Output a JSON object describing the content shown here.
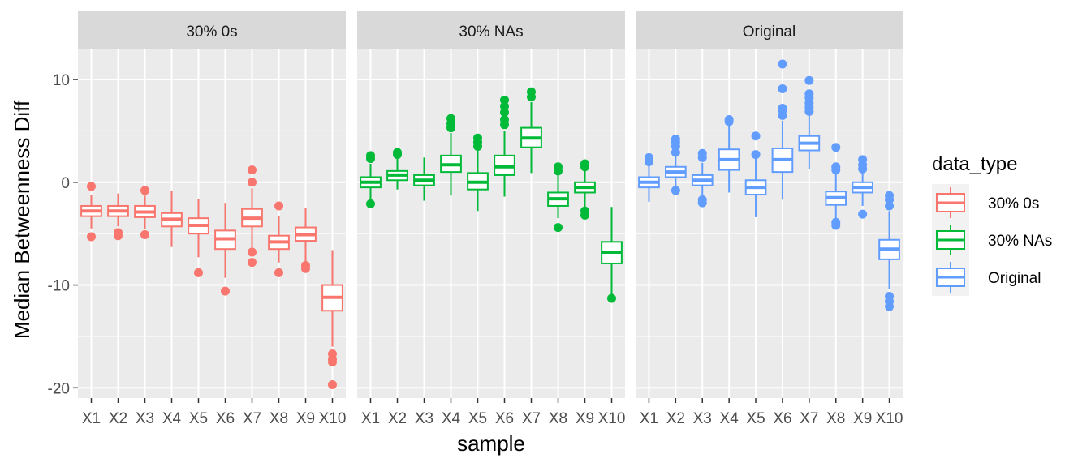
{
  "chart_data": {
    "type": "boxplot",
    "facet_by": "data_type",
    "ylabel": "Median Betweenness Diff",
    "xlabel": "sample",
    "ylim": [
      -21,
      13
    ],
    "yticks": [
      -20,
      -10,
      0,
      10
    ],
    "categories": [
      "X1",
      "X2",
      "X3",
      "X4",
      "X5",
      "X6",
      "X7",
      "X8",
      "X9",
      "X10"
    ],
    "legend": {
      "title": "data_type",
      "position": "right",
      "entries": [
        "30% 0s",
        "30% NAs",
        "Original"
      ]
    },
    "panels": [
      {
        "name": "30% 0s",
        "color": "#F8766D",
        "boxes": [
          {
            "x": "X1",
            "q1": -3.3,
            "median": -2.8,
            "q3": -2.3,
            "whisker_low": -4.5,
            "whisker_high": -1.2,
            "outliers": [
              -0.4,
              -5.3
            ]
          },
          {
            "x": "X2",
            "q1": -3.3,
            "median": -2.8,
            "q3": -2.3,
            "whisker_low": -4.3,
            "whisker_high": -1.1,
            "outliers": [
              -4.9,
              -5.2
            ]
          },
          {
            "x": "X3",
            "q1": -3.4,
            "median": -2.9,
            "q3": -2.3,
            "whisker_low": -4.6,
            "whisker_high": -1.3,
            "outliers": [
              -0.8,
              -5.1
            ]
          },
          {
            "x": "X4",
            "q1": -4.3,
            "median": -3.6,
            "q3": -3.0,
            "whisker_low": -6.3,
            "whisker_high": -0.8,
            "outliers": []
          },
          {
            "x": "X5",
            "q1": -5.0,
            "median": -4.2,
            "q3": -3.5,
            "whisker_low": -7.3,
            "whisker_high": -1.6,
            "outliers": [
              -8.8
            ]
          },
          {
            "x": "X6",
            "q1": -6.5,
            "median": -5.5,
            "q3": -4.7,
            "whisker_low": -9.3,
            "whisker_high": -2.0,
            "outliers": [
              -10.6
            ]
          },
          {
            "x": "X7",
            "q1": -4.3,
            "median": -3.5,
            "q3": -2.6,
            "whisker_low": -6.5,
            "whisker_high": -0.6,
            "outliers": [
              1.2,
              0.0,
              -6.8,
              -7.8
            ]
          },
          {
            "x": "X8",
            "q1": -6.5,
            "median": -5.8,
            "q3": -5.2,
            "whisker_low": -7.8,
            "whisker_high": -3.3,
            "outliers": [
              -2.3,
              -8.8
            ]
          },
          {
            "x": "X9",
            "q1": -5.7,
            "median": -5.1,
            "q3": -4.4,
            "whisker_low": -7.8,
            "whisker_high": -2.5,
            "outliers": [
              -8.1,
              -8.4
            ]
          },
          {
            "x": "X10",
            "q1": -12.5,
            "median": -11.2,
            "q3": -10.0,
            "whisker_low": -16.0,
            "whisker_high": -6.6,
            "outliers": [
              -16.7,
              -17.2,
              -17.5,
              -19.7
            ]
          }
        ]
      },
      {
        "name": "30% NAs",
        "color": "#00BA38",
        "boxes": [
          {
            "x": "X1",
            "q1": -0.5,
            "median": 0.0,
            "q3": 0.5,
            "whisker_low": -1.7,
            "whisker_high": 1.8,
            "outliers": [
              2.3,
              2.6,
              -2.1
            ]
          },
          {
            "x": "X2",
            "q1": 0.2,
            "median": 0.7,
            "q3": 1.1,
            "whisker_low": -0.7,
            "whisker_high": 2.3,
            "outliers": [
              2.7,
              2.9
            ]
          },
          {
            "x": "X3",
            "q1": -0.3,
            "median": 0.2,
            "q3": 0.7,
            "whisker_low": -1.8,
            "whisker_high": 2.4,
            "outliers": []
          },
          {
            "x": "X4",
            "q1": 1.0,
            "median": 1.7,
            "q3": 2.6,
            "whisker_low": -1.3,
            "whisker_high": 4.8,
            "outliers": [
              5.3,
              5.7,
              6.2
            ]
          },
          {
            "x": "X5",
            "q1": -0.7,
            "median": 0.0,
            "q3": 0.9,
            "whisker_low": -2.8,
            "whisker_high": 3.1,
            "outliers": [
              3.5,
              3.9,
              4.3
            ]
          },
          {
            "x": "X6",
            "q1": 0.7,
            "median": 1.5,
            "q3": 2.6,
            "whisker_low": -1.4,
            "whisker_high": 5.0,
            "outliers": [
              5.6,
              6.1,
              6.8,
              7.4,
              8.0
            ]
          },
          {
            "x": "X7",
            "q1": 3.4,
            "median": 4.3,
            "q3": 5.3,
            "whisker_low": 0.9,
            "whisker_high": 7.8,
            "outliers": [
              8.3,
              8.8
            ]
          },
          {
            "x": "X8",
            "q1": -2.3,
            "median": -1.6,
            "q3": -1.0,
            "whisker_low": -3.5,
            "whisker_high": 0.8,
            "outliers": [
              1.1,
              1.5,
              -4.4
            ]
          },
          {
            "x": "X9",
            "q1": -1.0,
            "median": -0.5,
            "q3": 0.0,
            "whisker_low": -2.4,
            "whisker_high": 1.2,
            "outliers": [
              1.5,
              1.8,
              -2.8,
              -3.2
            ]
          },
          {
            "x": "X10",
            "q1": -7.9,
            "median": -6.8,
            "q3": -5.8,
            "whisker_low": -11.0,
            "whisker_high": -2.4,
            "outliers": [
              -11.3
            ]
          }
        ]
      },
      {
        "name": "Original",
        "color": "#619CFF",
        "boxes": [
          {
            "x": "X1",
            "q1": -0.5,
            "median": 0.0,
            "q3": 0.5,
            "whisker_low": -1.9,
            "whisker_high": 1.7,
            "outliers": [
              2.0,
              2.4
            ]
          },
          {
            "x": "X2",
            "q1": 0.5,
            "median": 1.0,
            "q3": 1.5,
            "whisker_low": -0.7,
            "whisker_high": 2.6,
            "outliers": [
              2.9,
              3.5,
              3.9,
              4.2,
              -0.8
            ]
          },
          {
            "x": "X3",
            "q1": -0.3,
            "median": 0.2,
            "q3": 0.7,
            "whisker_low": -1.4,
            "whisker_high": 1.9,
            "outliers": [
              2.4,
              2.8,
              -1.7,
              -2.0
            ]
          },
          {
            "x": "X4",
            "q1": 1.2,
            "median": 2.2,
            "q3": 3.2,
            "whisker_low": -1.0,
            "whisker_high": 5.5,
            "outliers": [
              5.9,
              6.1
            ]
          },
          {
            "x": "X5",
            "q1": -1.2,
            "median": -0.5,
            "q3": 0.2,
            "whisker_low": -3.4,
            "whisker_high": 2.4,
            "outliers": [
              2.7,
              4.5
            ]
          },
          {
            "x": "X6",
            "q1": 1.0,
            "median": 2.2,
            "q3": 3.3,
            "whisker_low": -1.7,
            "whisker_high": 6.0,
            "outliers": [
              6.5,
              7.0,
              7.2,
              9.1,
              11.5
            ]
          },
          {
            "x": "X7",
            "q1": 3.1,
            "median": 3.8,
            "q3": 4.5,
            "whisker_low": 1.3,
            "whisker_high": 6.5,
            "outliers": [
              6.9,
              7.3,
              7.7,
              8.2,
              8.6,
              9.9
            ]
          },
          {
            "x": "X8",
            "q1": -2.2,
            "median": -1.5,
            "q3": -0.9,
            "whisker_low": -3.6,
            "whisker_high": 0.9,
            "outliers": [
              1.2,
              1.5,
              3.4,
              -3.9,
              -4.2
            ]
          },
          {
            "x": "X9",
            "q1": -1.0,
            "median": -0.5,
            "q3": 0.0,
            "whisker_low": -2.3,
            "whisker_high": 1.0,
            "outliers": [
              1.3,
              1.7,
              2.2,
              -3.1
            ]
          },
          {
            "x": "X10",
            "q1": -7.5,
            "median": -6.5,
            "q3": -5.6,
            "whisker_low": -10.4,
            "whisker_high": -2.8,
            "outliers": [
              -1.3,
              -1.7,
              -2.3,
              -11.1,
              -11.6,
              -12.1
            ]
          }
        ]
      }
    ]
  }
}
